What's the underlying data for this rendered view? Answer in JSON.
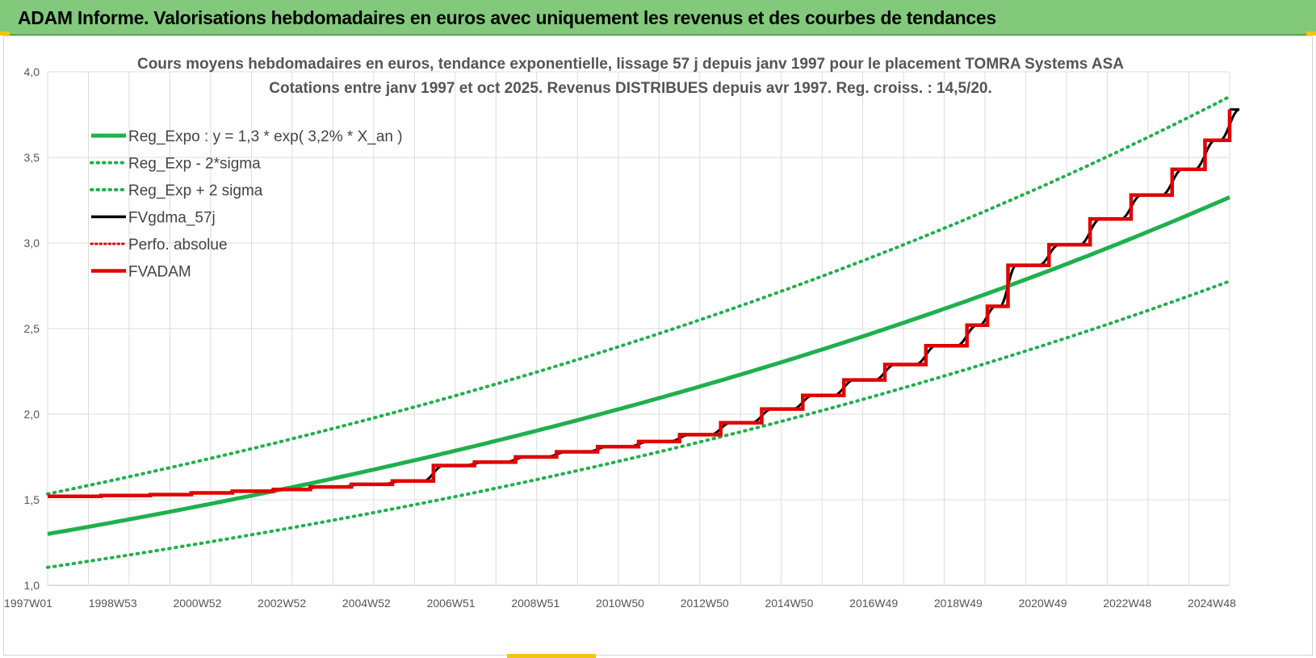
{
  "header": {
    "title": "ADAM Informe. Valorisations hebdomadaires en euros avec uniquement les revenus et des courbes de tendances"
  },
  "colors": {
    "header_bg": "#82c97c",
    "green": "#1fb04c",
    "black": "#000000",
    "red": "#e00000",
    "grid": "#dcdcdc"
  },
  "chart_data": {
    "type": "line",
    "title_line1": "Cours moyens hebdomadaires en euros, tendance exponentielle, lissage 57 j depuis janv 1997 pour le placement TOMRA Systems ASA",
    "title_line2": "Cotations entre janv 1997 et oct 2025. Revenus DISTRIBUES depuis avr 1997. Reg. croiss. : 14,5/20.",
    "xlabel": "",
    "ylabel": "",
    "ylim": [
      1.0,
      4.0
    ],
    "xlim": [
      1997.0,
      2025.8
    ],
    "y_ticks": [
      "1,0",
      "1,5",
      "2,0",
      "2,5",
      "3,0",
      "3,5",
      "4,0"
    ],
    "x_tick_labels": [
      "1997W01",
      "1998W53",
      "2000W52",
      "2002W52",
      "2004W52",
      "2006W51",
      "2008W51",
      "2010W50",
      "2012W50",
      "2014W50",
      "2016W49",
      "2018W49",
      "2020W49",
      "2022W48",
      "2024W48"
    ],
    "grid": true,
    "legend_position": "top-left",
    "legend": [
      {
        "label": "Reg_Expo : y = 1,3 * exp( 3,2% *  X_an )",
        "style": "solid-green"
      },
      {
        "label": "Reg_Exp - 2*sigma",
        "style": "dotted-green"
      },
      {
        "label": "Reg_Exp + 2 sigma",
        "style": "dotted-green"
      },
      {
        "label": "FVgdma_57j",
        "style": "solid-black"
      },
      {
        "label": "Perfo. absolue",
        "style": "dotted-red"
      },
      {
        "label": "FVADAM",
        "style": "solid-red"
      }
    ],
    "regression": {
      "a": 1.3,
      "rate": 0.032,
      "lower_factor": 0.85,
      "upper_factor": 1.18
    },
    "fvadam_steps": {
      "x": [
        1997.0,
        1998.3,
        1999.5,
        2000.5,
        2001.5,
        2002.5,
        2003.4,
        2004.4,
        2005.4,
        2006.4,
        2007.4,
        2008.4,
        2009.4,
        2010.4,
        2011.4,
        2012.4,
        2013.4,
        2014.4,
        2015.4,
        2016.4,
        2017.4,
        2018.4,
        2019.4,
        2019.9,
        2020.4,
        2021.4,
        2022.4,
        2023.4,
        2024.4,
        2025.2,
        2025.8
      ],
      "y": [
        1.52,
        1.525,
        1.53,
        1.54,
        1.55,
        1.56,
        1.575,
        1.59,
        1.61,
        1.7,
        1.72,
        1.75,
        1.78,
        1.81,
        1.84,
        1.88,
        1.95,
        2.03,
        2.11,
        2.2,
        2.29,
        2.4,
        2.52,
        2.63,
        2.87,
        2.99,
        3.14,
        3.28,
        3.43,
        3.6,
        3.78
      ]
    }
  }
}
